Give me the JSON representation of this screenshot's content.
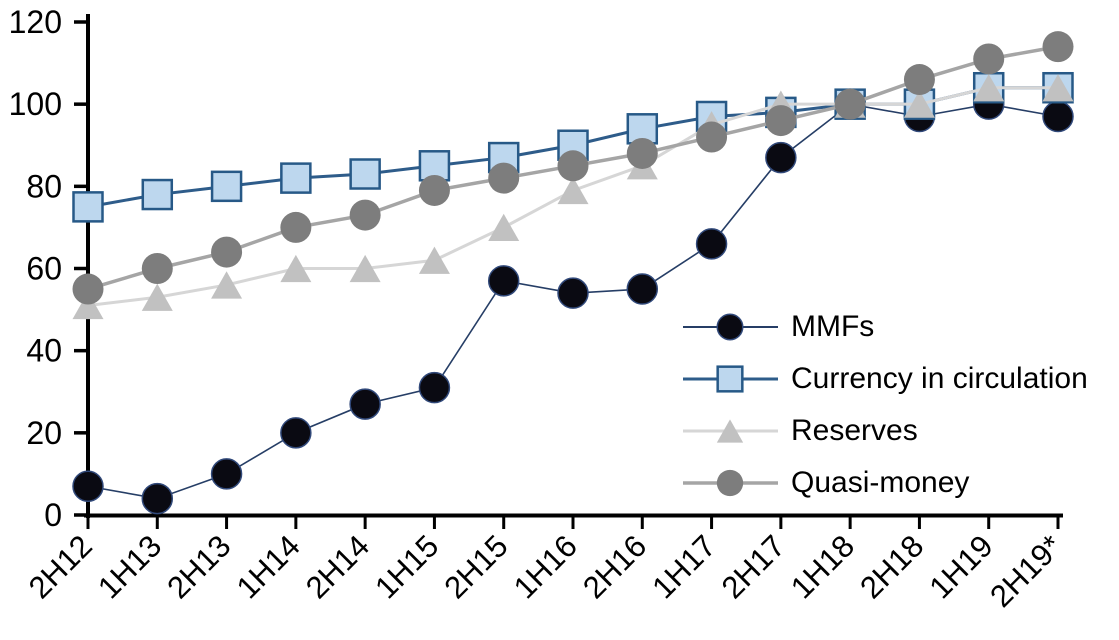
{
  "chart_data": {
    "type": "line",
    "title": "",
    "xlabel": "",
    "ylabel": "",
    "grid": false,
    "legend_position": "inside-right",
    "axis_color": "#000000",
    "text_color": "#000000",
    "ylim": [
      0,
      120
    ],
    "yticks": [
      0,
      20,
      40,
      60,
      80,
      100,
      120
    ],
    "categories": [
      "2H12",
      "1H13",
      "2H13",
      "1H14",
      "2H14",
      "1H15",
      "2H15",
      "1H16",
      "2H16",
      "1H17",
      "2H17",
      "1H18",
      "2H18",
      "1H19",
      "2H19*"
    ],
    "series": [
      {
        "name": "MMFs",
        "marker": "circle",
        "line_color": "#263E66",
        "line_width": 1.6,
        "marker_fill": "#0A0A12",
        "marker_stroke": "#31497A",
        "marker_stroke_width": 1.5,
        "marker_size": 30,
        "values": [
          7,
          4,
          10,
          20,
          27,
          31,
          57,
          54,
          55,
          66,
          87,
          100,
          97,
          100,
          97
        ]
      },
      {
        "name": "Currency in circulation",
        "marker": "square",
        "line_color": "#2E5C8A",
        "line_width": 3,
        "marker_fill": "#BDD7EE",
        "marker_stroke": "#275987",
        "marker_stroke_width": 2.5,
        "marker_size": 29,
        "values": [
          75,
          78,
          80,
          82,
          83,
          85,
          87,
          90,
          94,
          97,
          98,
          100,
          100,
          104,
          104
        ]
      },
      {
        "name": "Reserves",
        "marker": "triangle",
        "line_color": "#D6D6D6",
        "line_width": 3,
        "marker_fill": "#C1C1C1",
        "marker_stroke": "none",
        "marker_stroke_width": 0,
        "marker_size": 31,
        "values": [
          51,
          53,
          56,
          60,
          60,
          62,
          70,
          79,
          85,
          95,
          100,
          100,
          100,
          104,
          104
        ]
      },
      {
        "name": "Quasi-money",
        "marker": "circle",
        "line_color": "#A5A5A5",
        "line_width": 3.5,
        "marker_fill": "#7D7D7D",
        "marker_stroke": "none",
        "marker_stroke_width": 0,
        "marker_size": 31,
        "values": [
          55,
          60,
          64,
          70,
          73,
          79,
          82,
          85,
          88,
          92,
          96,
          100,
          106,
          111,
          114
        ]
      }
    ]
  }
}
